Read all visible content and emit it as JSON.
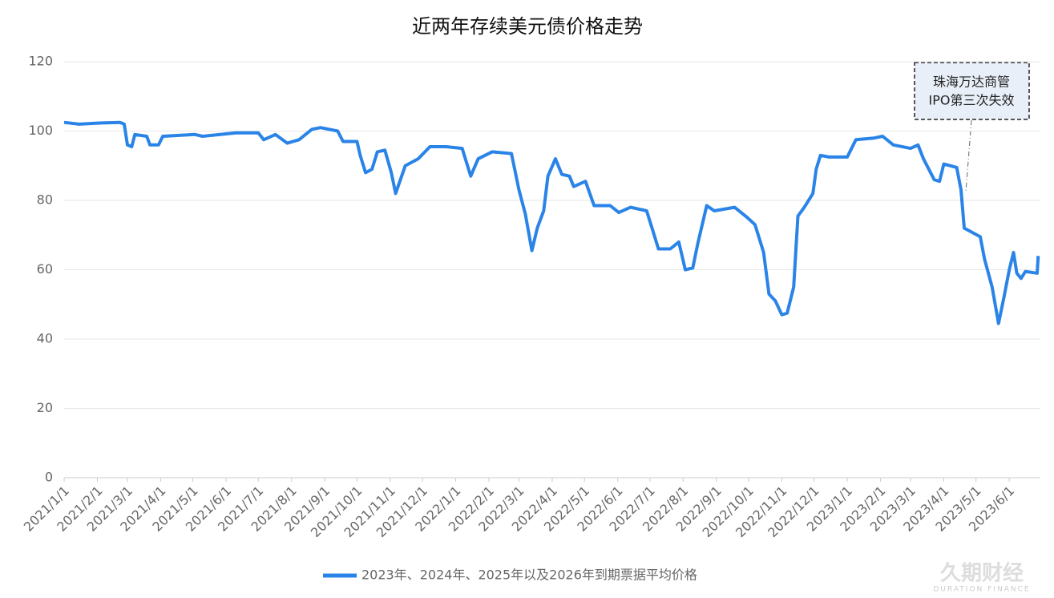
{
  "chart_data": {
    "type": "line",
    "title": "近两年存续美元债价格走势",
    "annotation": [
      "珠海万达商管",
      "IPO第三次失效"
    ],
    "watermark": [
      "久期财经",
      "DURATION FINANCE"
    ],
    "xlim": [
      "2021/1/1",
      "2023/6/30"
    ],
    "xticks": [
      "2021/1/1",
      "2021/2/1",
      "2021/3/1",
      "2021/4/1",
      "2021/5/1",
      "2021/6/1",
      "2021/7/1",
      "2021/8/1",
      "2021/9/1",
      "2021/10/1",
      "2021/11/1",
      "2021/12/1",
      "2022/1/1",
      "2022/2/1",
      "2022/3/1",
      "2022/4/1",
      "2022/5/1",
      "2022/6/1",
      "2022/7/1",
      "2022/8/1",
      "2022/9/1",
      "2022/10/1",
      "2022/11/1",
      "2022/12/1",
      "2023/1/1",
      "2023/2/1",
      "2023/3/1",
      "2023/4/1",
      "2023/5/1",
      "2023/6/1"
    ],
    "ylim": [
      0,
      120
    ],
    "yticks": [
      0,
      20,
      40,
      60,
      80,
      100,
      120
    ],
    "grid": true,
    "x": [
      "2021/1/1",
      "2021/1/15",
      "2021/2/1",
      "2021/2/22",
      "2021/2/26",
      "2021/3/1",
      "2021/3/5",
      "2021/3/8",
      "2021/3/19",
      "2021/3/22",
      "2021/3/30",
      "2021/4/3",
      "2021/5/3",
      "2021/5/10",
      "2021/6/10",
      "2021/7/1",
      "2021/7/6",
      "2021/7/17",
      "2021/7/28",
      "2021/8/8",
      "2021/8/20",
      "2021/8/28",
      "2021/9/13",
      "2021/9/18",
      "2021/10/1",
      "2021/10/4",
      "2021/10/9",
      "2021/10/15",
      "2021/10/20",
      "2021/10/27",
      "2021/11/2",
      "2021/11/6",
      "2021/11/15",
      "2021/11/27",
      "2021/12/8",
      "2021/12/23",
      "2022/1/7",
      "2022/1/15",
      "2022/1/22",
      "2022/2/4",
      "2022/2/22",
      "2022/3/1",
      "2022/3/7",
      "2022/3/13",
      "2022/3/18",
      "2022/3/24",
      "2022/3/28",
      "2022/4/4",
      "2022/4/10",
      "2022/4/17",
      "2022/4/21",
      "2022/5/2",
      "2022/5/10",
      "2022/5/25",
      "2022/6/2",
      "2022/6/13",
      "2022/6/28",
      "2022/7/5",
      "2022/7/9",
      "2022/7/20",
      "2022/7/28",
      "2022/8/3",
      "2022/8/10",
      "2022/8/15",
      "2022/8/23",
      "2022/8/30",
      "2022/9/18",
      "2022/9/30",
      "2022/10/7",
      "2022/10/15",
      "2022/10/20",
      "2022/10/26",
      "2022/11/1",
      "2022/11/6",
      "2022/11/12",
      "2022/11/16",
      "2022/11/22",
      "2022/11/30",
      "2022/12/3",
      "2022/12/7",
      "2022/12/15",
      "2023/1/1",
      "2023/1/9",
      "2023/1/26",
      "2023/2/3",
      "2023/2/13",
      "2023/3/1",
      "2023/3/8",
      "2023/3/13",
      "2023/3/23",
      "2023/3/28",
      "2023/4/1",
      "2023/4/13",
      "2023/4/17",
      "2023/4/20",
      "2023/4/26",
      "2023/5/5",
      "2023/5/9",
      "2023/5/16",
      "2023/5/22",
      "2023/5/27",
      "2023/6/1",
      "2023/6/5",
      "2023/6/8",
      "2023/6/12",
      "2023/6/16",
      "2023/6/27",
      "2023/6/28"
    ],
    "series": [
      {
        "name": "2023年、2024年、2025年以及2026年到期票据平均价格",
        "color": "#2a84e8",
        "values": [
          102.5,
          102,
          102.3,
          102.5,
          102,
          96,
          95.5,
          99,
          98.5,
          96,
          96,
          98.5,
          99,
          98.5,
          99.5,
          99.5,
          97.5,
          99,
          96.5,
          97.5,
          100.5,
          101,
          100,
          97,
          97,
          93,
          88,
          89,
          94,
          94.5,
          88,
          82,
          90,
          92,
          95.5,
          95.5,
          95,
          87,
          92,
          94,
          93.5,
          83,
          76,
          65.5,
          72,
          77,
          87,
          92,
          87.5,
          87,
          84,
          85.5,
          78.5,
          78.5,
          76.5,
          78,
          77,
          70,
          66,
          66,
          68,
          60,
          60.5,
          68,
          78.5,
          77,
          78,
          75,
          73,
          65,
          53,
          51,
          47,
          47.5,
          55,
          75.5,
          78,
          82,
          89,
          93,
          92.5,
          92.5,
          97.5,
          98,
          98.5,
          96,
          95,
          96,
          92,
          86,
          85.5,
          90.5,
          89.5,
          83,
          72,
          71,
          69.5,
          63,
          55,
          44.5,
          52,
          60,
          65,
          59,
          57.5,
          59.5,
          59,
          64
        ]
      }
    ]
  }
}
